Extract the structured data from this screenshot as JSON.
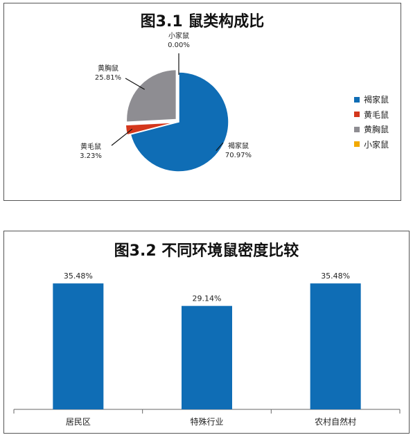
{
  "chart_data": [
    {
      "type": "pie",
      "title": "图3.1 鼠类构成比",
      "slices": [
        {
          "label": "褐家鼠",
          "value": 70.97,
          "value_label": "70.97%",
          "color": "#0f6db5"
        },
        {
          "label": "黄毛鼠",
          "value": 3.23,
          "value_label": "3.23%",
          "color": "#d4371c"
        },
        {
          "label": "黄胸鼠",
          "value": 25.81,
          "value_label": "25.81%",
          "color": "#8e8d92"
        },
        {
          "label": "小家鼠",
          "value": 0.0,
          "value_label": "0.00%",
          "color": "#f2a900"
        }
      ],
      "legend": {
        "position": "right",
        "items": [
          "褐家鼠",
          "黄毛鼠",
          "黄胸鼠",
          "小家鼠"
        ]
      }
    },
    {
      "type": "bar",
      "title": "图3.2 不同环境鼠密度比较",
      "categories": [
        "居民区",
        "特殊行业",
        "农村自然村"
      ],
      "values": [
        35.48,
        29.14,
        35.48
      ],
      "value_labels": [
        "35.48%",
        "29.14%",
        "35.48%"
      ],
      "color": "#0f6db5",
      "ylim": [
        0,
        40
      ],
      "grid": false
    }
  ]
}
